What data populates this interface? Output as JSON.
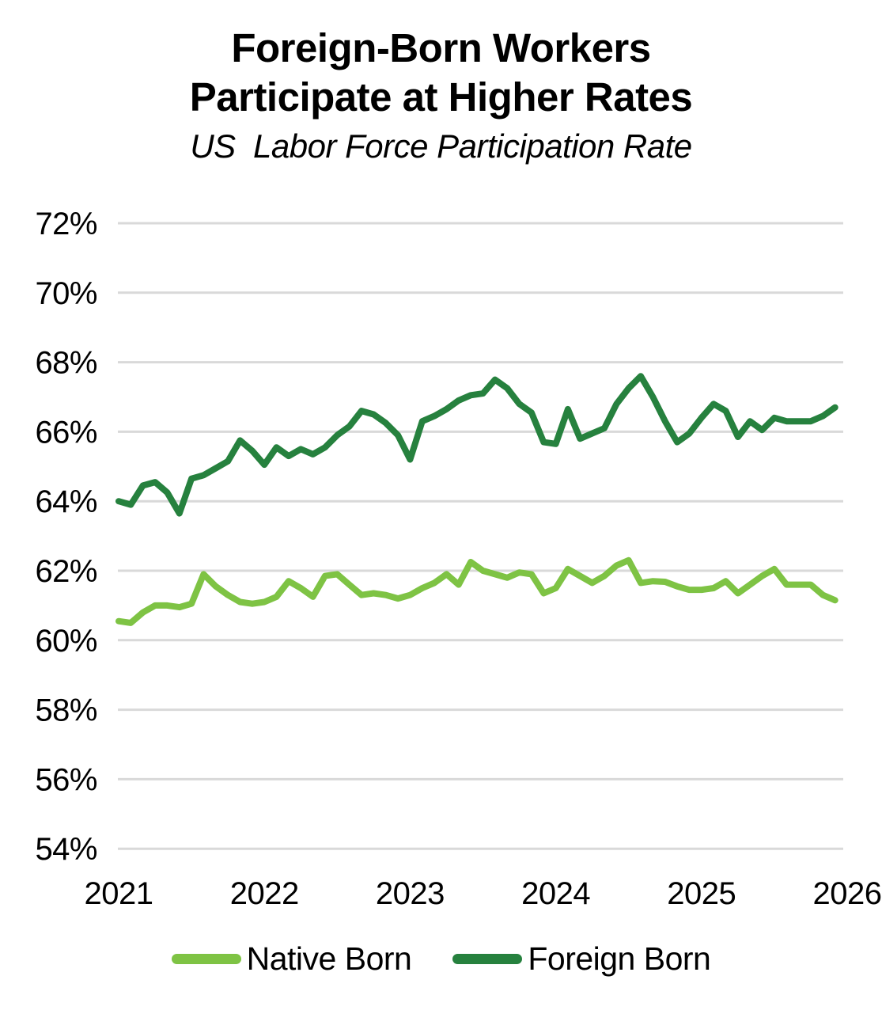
{
  "header": {
    "title_line1": "Foreign-Born Workers",
    "title_line2": "Participate at Higher Rates",
    "subtitle": "US  Labor Force Participation Rate"
  },
  "colors": {
    "native_born_line": "#7EC344",
    "foreign_born_line": "#26813E",
    "gridline": "#D9D9D9",
    "text": "#000000"
  },
  "chart_data": {
    "type": "line",
    "title": "Foreign-Born Workers Participate at Higher Rates",
    "subtitle": "US Labor Force Participation Rate",
    "unit": "%",
    "grid": "horizontal",
    "legend_position": "bottom",
    "x": {
      "start": "2021-01",
      "frequency": "monthly",
      "tick_labels": [
        "2021",
        "2022",
        "2023",
        "2024",
        "2025",
        "2026"
      ],
      "tick_month_indices": [
        0,
        12,
        24,
        36,
        48,
        60
      ]
    },
    "y": {
      "lim": [
        54,
        72
      ],
      "ticks": [
        72,
        70,
        68,
        66,
        64,
        62,
        60,
        58,
        56,
        54
      ],
      "tick_suffix": "%"
    },
    "series": [
      {
        "name": "Native Born",
        "color": "#7EC344",
        "values": [
          60.55,
          60.5,
          60.8,
          61.0,
          61.0,
          60.95,
          61.05,
          61.9,
          61.55,
          61.3,
          61.1,
          61.05,
          61.1,
          61.25,
          61.7,
          61.5,
          61.25,
          61.85,
          61.9,
          61.6,
          61.3,
          61.35,
          61.3,
          61.2,
          61.3,
          61.5,
          61.65,
          61.9,
          61.6,
          62.25,
          62.0,
          61.9,
          61.8,
          61.95,
          61.9,
          61.35,
          61.5,
          62.05,
          61.85,
          61.65,
          61.85,
          62.15,
          62.3,
          61.65,
          61.7,
          61.68,
          61.55,
          61.45,
          61.45,
          61.5,
          61.7,
          61.35,
          61.6,
          61.85,
          62.05,
          61.6,
          61.6,
          61.6,
          61.3,
          61.15
        ]
      },
      {
        "name": "Foreign Born",
        "color": "#26813E",
        "values": [
          64.0,
          63.9,
          64.45,
          64.55,
          64.25,
          63.65,
          64.65,
          64.75,
          64.95,
          65.15,
          65.75,
          65.45,
          65.05,
          65.55,
          65.3,
          65.5,
          65.35,
          65.55,
          65.9,
          66.15,
          66.6,
          66.5,
          66.25,
          65.9,
          65.2,
          66.3,
          66.45,
          66.65,
          66.9,
          67.05,
          67.1,
          67.5,
          67.25,
          66.8,
          66.55,
          65.7,
          65.65,
          66.65,
          65.8,
          65.95,
          66.1,
          66.8,
          67.25,
          67.6,
          67.0,
          66.3,
          65.7,
          65.95,
          66.4,
          66.8,
          66.6,
          65.85,
          66.3,
          66.05,
          66.4,
          66.3,
          66.3,
          66.3,
          66.45,
          66.7
        ]
      }
    ]
  }
}
